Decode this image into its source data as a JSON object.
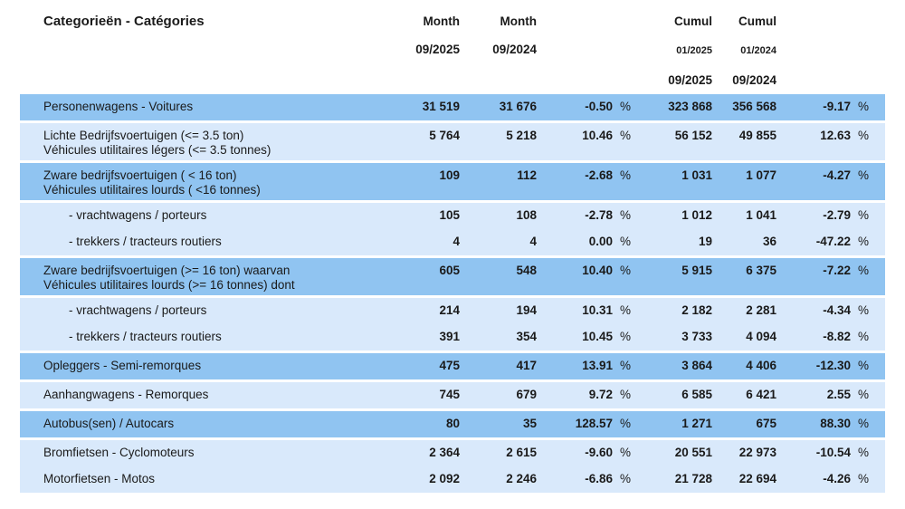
{
  "percent_sign": "%",
  "colors": {
    "row_dark": "#90c4f1",
    "row_light": "#d9e9fb",
    "header_text": "#7f7f7f",
    "body_text": "#1a1a1a"
  },
  "header": {
    "title": "Categorieën - Catégories",
    "month_2025": {
      "label": "Month",
      "date": "09/2025"
    },
    "month_2024": {
      "label": "Month",
      "date": "09/2024"
    },
    "cumul_2025": {
      "label": "Cumul",
      "date_from": "01/2025",
      "date_to": "09/2025"
    },
    "cumul_2024": {
      "label": "Cumul",
      "date_from": "01/2024",
      "date_to": "09/2024"
    }
  },
  "table": {
    "rows": [
      {
        "name": "Personenwagens - Voitures",
        "name2": "",
        "indent": false,
        "shade": "dark",
        "sep": false,
        "month_2025": "31 519",
        "month_2024": "31 676",
        "pct_month": "-0.50",
        "cumul_2025": "323 868",
        "cumul_2024": "356 568",
        "pct_cumul": "-9.17"
      },
      {
        "name": "Lichte Bedrijfsvoertuigen (<= 3.5 ton)",
        "name2": "Véhicules utilitaires légers (<= 3.5 tonnes)",
        "indent": false,
        "shade": "light",
        "sep": true,
        "month_2025": "5 764",
        "month_2024": "5 218",
        "pct_month": "10.46",
        "cumul_2025": "56 152",
        "cumul_2024": "49 855",
        "pct_cumul": "12.63"
      },
      {
        "name": "Zware bedrijfsvoertuigen ( < 16 ton)",
        "name2": "Véhicules utilitaires lourds ( <16 tonnes)",
        "indent": false,
        "shade": "dark",
        "sep": true,
        "month_2025": "109",
        "month_2024": "112",
        "pct_month": "-2.68",
        "cumul_2025": "1 031",
        "cumul_2024": "1 077",
        "pct_cumul": "-4.27"
      },
      {
        "name": "- vrachtwagens / porteurs",
        "name2": "",
        "indent": true,
        "shade": "light",
        "sep": true,
        "month_2025": "105",
        "month_2024": "108",
        "pct_month": "-2.78",
        "cumul_2025": "1 012",
        "cumul_2024": "1 041",
        "pct_cumul": "-2.79"
      },
      {
        "name": "- trekkers / tracteurs routiers",
        "name2": "",
        "indent": true,
        "shade": "light",
        "sep": false,
        "month_2025": "4",
        "month_2024": "4",
        "pct_month": "0.00",
        "cumul_2025": "19",
        "cumul_2024": "36",
        "pct_cumul": "-47.22"
      },
      {
        "name": "Zware bedrijfsvoertuigen (>= 16 ton) waarvan",
        "name2": "Véhicules utilitaires lourds (>= 16 tonnes) dont",
        "indent": false,
        "shade": "dark",
        "sep": true,
        "month_2025": "605",
        "month_2024": "548",
        "pct_month": "10.40",
        "cumul_2025": "5 915",
        "cumul_2024": "6 375",
        "pct_cumul": "-7.22"
      },
      {
        "name": "- vrachtwagens / porteurs",
        "name2": "",
        "indent": true,
        "shade": "light",
        "sep": true,
        "month_2025": "214",
        "month_2024": "194",
        "pct_month": "10.31",
        "cumul_2025": "2 182",
        "cumul_2024": "2 281",
        "pct_cumul": "-4.34"
      },
      {
        "name": "- trekkers / tracteurs routiers",
        "name2": "",
        "indent": true,
        "shade": "light",
        "sep": false,
        "month_2025": "391",
        "month_2024": "354",
        "pct_month": "10.45",
        "cumul_2025": "3 733",
        "cumul_2024": "4 094",
        "pct_cumul": "-8.82"
      },
      {
        "name": "Opleggers - Semi-remorques",
        "name2": "",
        "indent": false,
        "shade": "dark",
        "sep": true,
        "month_2025": "475",
        "month_2024": "417",
        "pct_month": "13.91",
        "cumul_2025": "3 864",
        "cumul_2024": "4 406",
        "pct_cumul": "-12.30"
      },
      {
        "name": "Aanhangwagens - Remorques",
        "name2": "",
        "indent": false,
        "shade": "light",
        "sep": true,
        "month_2025": "745",
        "month_2024": "679",
        "pct_month": "9.72",
        "cumul_2025": "6 585",
        "cumul_2024": "6 421",
        "pct_cumul": "2.55"
      },
      {
        "name": "Autobus(sen) / Autocars",
        "name2": "",
        "indent": false,
        "shade": "dark",
        "sep": true,
        "month_2025": "80",
        "month_2024": "35",
        "pct_month": "128.57",
        "cumul_2025": "1 271",
        "cumul_2024": "675",
        "pct_cumul": "88.30"
      },
      {
        "name": "Bromfietsen - Cyclomoteurs",
        "name2": "",
        "indent": false,
        "shade": "light",
        "sep": true,
        "month_2025": "2 364",
        "month_2024": "2 615",
        "pct_month": "-9.60",
        "cumul_2025": "20 551",
        "cumul_2024": "22 973",
        "pct_cumul": "-10.54"
      },
      {
        "name": "Motorfietsen - Motos",
        "name2": "",
        "indent": false,
        "shade": "light",
        "sep": false,
        "month_2025": "2 092",
        "month_2024": "2 246",
        "pct_month": "-6.86",
        "cumul_2025": "21 728",
        "cumul_2024": "22 694",
        "pct_cumul": "-4.26"
      }
    ]
  }
}
